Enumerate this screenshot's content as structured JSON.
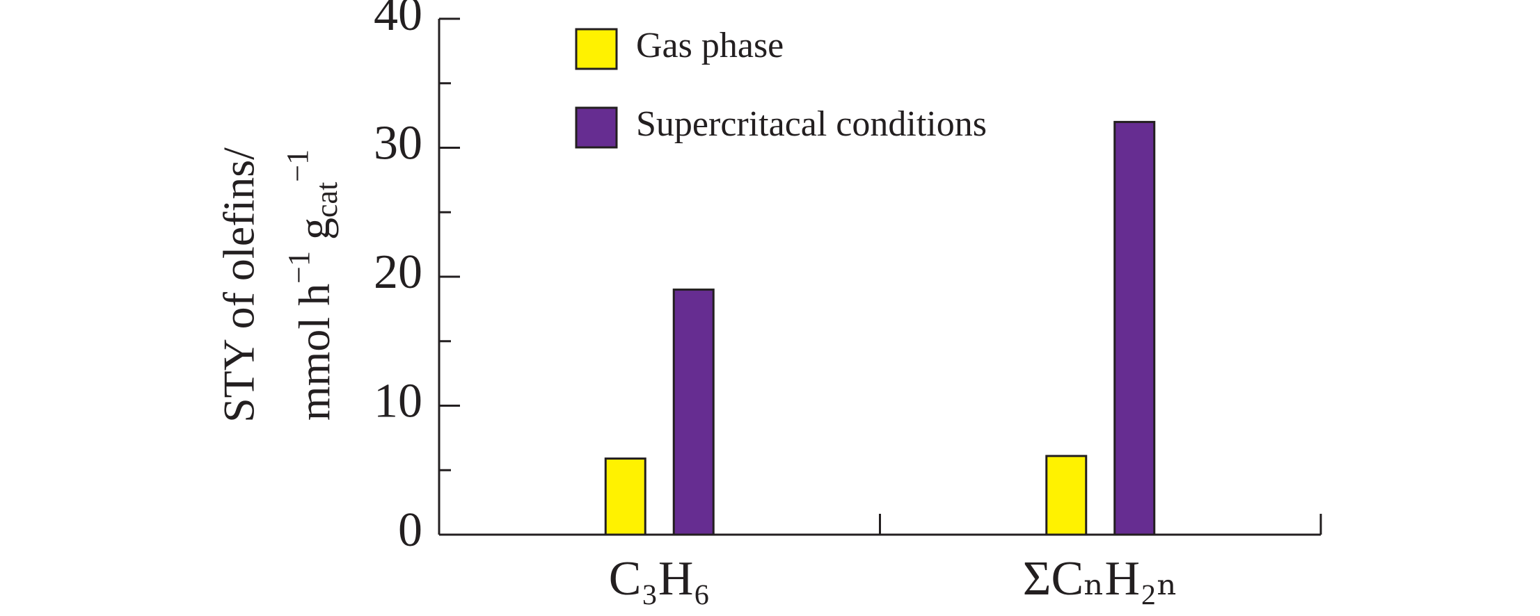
{
  "chart_data": {
    "type": "bar",
    "y_label": "STY of olefins/",
    "y_label_unit": [
      "mmol h",
      "−1",
      " g",
      "cat",
      "−1"
    ],
    "categories": [
      "C₃H₆",
      "ΣCₙH₂ₙ"
    ],
    "series": [
      {
        "name": "Gas phase",
        "color": "#fff200",
        "values": [
          5.9,
          6.1
        ]
      },
      {
        "name": "Supercritacal conditions",
        "color": "#662d91",
        "values": [
          19.0,
          32.0
        ]
      }
    ],
    "ylim": [
      0,
      40
    ],
    "yticks": [
      0,
      10,
      20,
      30,
      40
    ],
    "yminor_ticks": [
      5,
      15,
      25,
      35
    ],
    "legend": "top-left"
  }
}
